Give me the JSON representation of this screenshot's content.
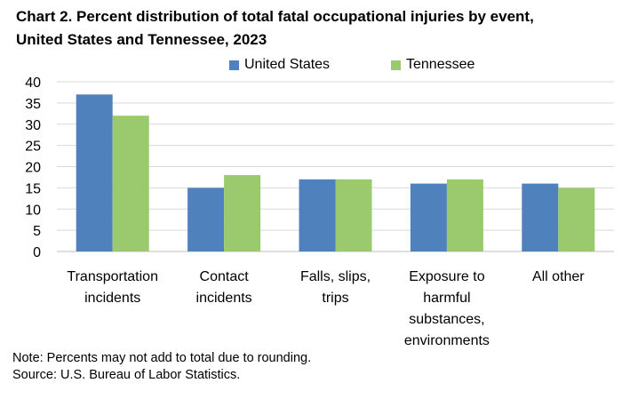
{
  "title_lines": [
    "Chart 2. Percent distribution of total fatal occupational injuries by event,",
    "United States and Tennessee, 2023"
  ],
  "notes": {
    "note": "Note: Percents may not add to total due to rounding.",
    "source": "Source: U.S. Bureau of Labor Statistics."
  },
  "colors": {
    "us": "#4f81bd",
    "tn": "#9bc96d",
    "grid": "#d9d9d9"
  },
  "chart_data": {
    "type": "bar",
    "title": "Chart 2. Percent distribution of total fatal occupational injuries by event, United States and Tennessee, 2023",
    "xlabel": "",
    "ylabel": "",
    "categories": [
      [
        "Transportation",
        "incidents"
      ],
      [
        "Contact",
        "incidents"
      ],
      [
        "Falls, slips,",
        "trips"
      ],
      [
        "Exposure to",
        "harmful",
        "substances,",
        "environments"
      ],
      [
        "All other"
      ]
    ],
    "series": [
      {
        "name": "United States",
        "values": [
          37,
          15,
          17,
          16,
          16
        ]
      },
      {
        "name": "Tennessee",
        "values": [
          32,
          18,
          17,
          17,
          15
        ]
      }
    ],
    "ylim": [
      0,
      40
    ],
    "yticks": [
      0,
      5,
      10,
      15,
      20,
      25,
      30,
      35,
      40
    ],
    "grid": true,
    "legend": "top-center"
  }
}
